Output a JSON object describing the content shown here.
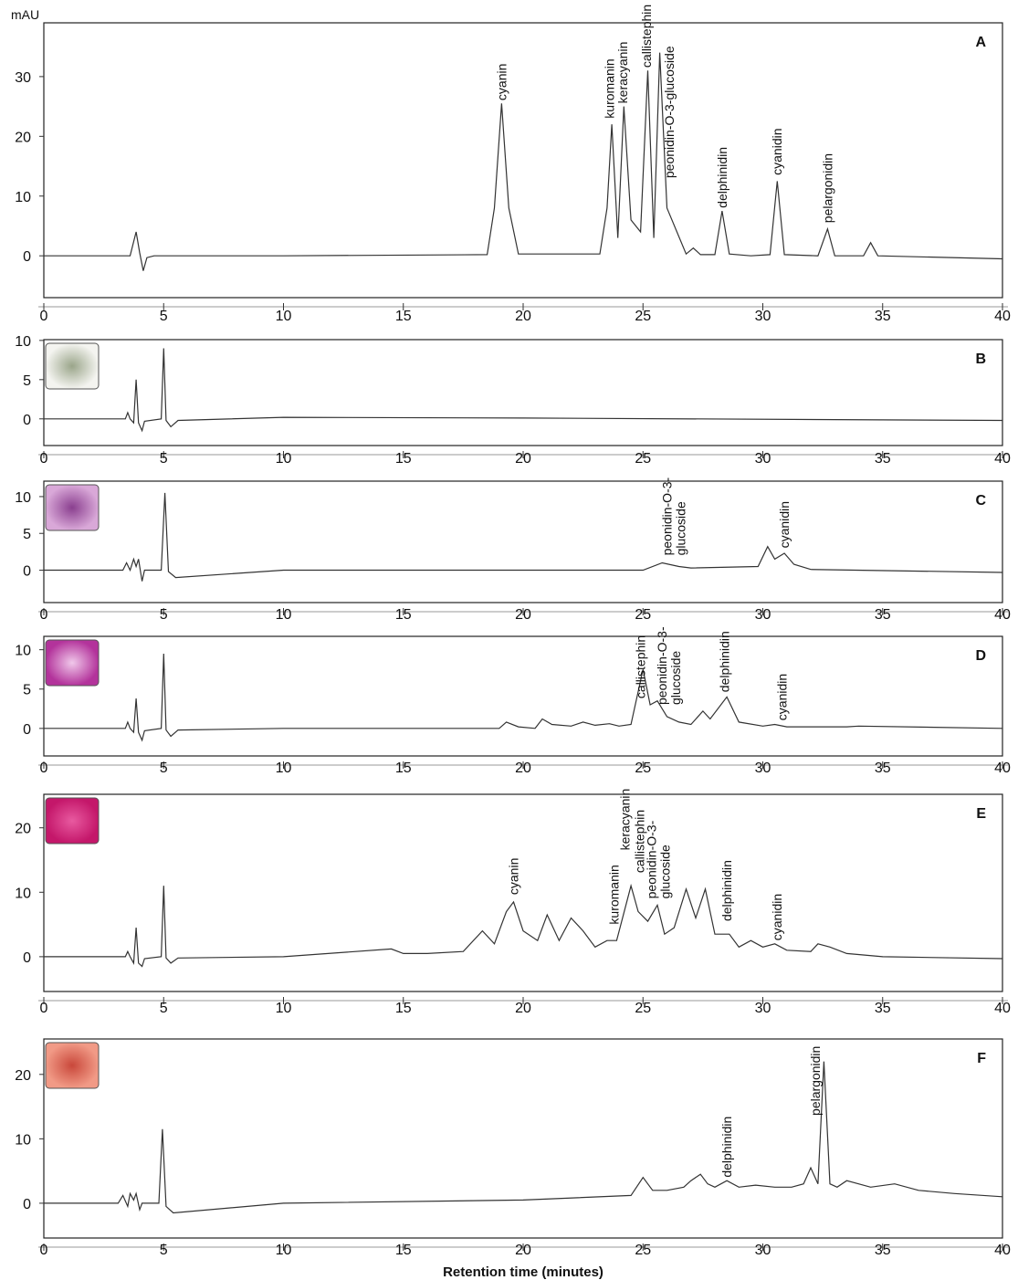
{
  "chart_data": [
    {
      "type": "line",
      "title": "A",
      "y_label": "mAU",
      "color": "#333333",
      "x": [
        0,
        3.6,
        3.85,
        4.0,
        4.15,
        4.3,
        4.6,
        10,
        18.5,
        18.8,
        19.1,
        19.4,
        19.8,
        23.2,
        23.5,
        23.7,
        23.95,
        24.2,
        24.5,
        24.9,
        25.2,
        25.45,
        25.7,
        26.0,
        26.8,
        27.1,
        27.4,
        28.0,
        28.3,
        28.6,
        29.5,
        30.3,
        30.6,
        30.9,
        32.3,
        32.7,
        33.0,
        34.2,
        34.5,
        34.8,
        40
      ],
      "values": [
        0,
        0,
        4,
        0.5,
        -2.5,
        -0.3,
        0,
        0,
        0.2,
        8,
        25.5,
        8,
        0.3,
        0.3,
        8,
        22,
        3,
        25,
        6,
        4,
        31,
        3,
        34,
        8,
        0.3,
        1.3,
        0.2,
        0.2,
        7.5,
        0.3,
        0,
        0.2,
        12.5,
        0.2,
        0,
        4.5,
        0,
        0,
        2.2,
        0,
        -0.5
      ],
      "xlim": [
        0,
        40
      ],
      "ylim": [
        -7,
        39
      ],
      "xticks": [
        0,
        5,
        10,
        15,
        20,
        25,
        30,
        35,
        40
      ],
      "yticks": [
        0,
        10,
        20,
        30
      ],
      "annotations": [
        {
          "text": "cyanin",
          "x": 19.1,
          "y": 26
        },
        {
          "text": "kuromanin",
          "x": 23.6,
          "y": 23
        },
        {
          "text": "keracyanin",
          "x": 24.15,
          "y": 25.5
        },
        {
          "text": "callistephin",
          "x": 25.15,
          "y": 31.5
        },
        {
          "text": "peonidin-O-3-glucoside",
          "x": 26.1,
          "y": 13
        },
        {
          "text": "delphinidin",
          "x": 28.3,
          "y": 8
        },
        {
          "text": "cyanidin",
          "x": 30.6,
          "y": 13.5
        },
        {
          "text": "pelargonidin",
          "x": 32.7,
          "y": 5.5
        }
      ]
    },
    {
      "type": "line",
      "title": "B",
      "color": "#333333",
      "x": [
        0,
        3.4,
        3.5,
        3.6,
        3.75,
        3.85,
        3.95,
        4.1,
        4.2,
        4.9,
        5.0,
        5.1,
        5.3,
        5.6,
        10,
        20,
        40
      ],
      "values": [
        0,
        0,
        0.8,
        0,
        -0.5,
        5,
        -0.5,
        -1.5,
        -0.3,
        0,
        9,
        -0.2,
        -1,
        -0.2,
        0.2,
        0.1,
        -0.2
      ],
      "xlim": [
        0,
        40
      ],
      "ylim": [
        -3.4,
        10.1
      ],
      "xticks": [
        0,
        5,
        10,
        15,
        20,
        25,
        30,
        35,
        40
      ],
      "yticks": [
        0,
        5,
        10
      ],
      "annotations": []
    },
    {
      "type": "line",
      "title": "C",
      "color": "#333333",
      "x": [
        0,
        3.3,
        3.45,
        3.6,
        3.75,
        3.85,
        3.95,
        4.1,
        4.2,
        4.9,
        5.05,
        5.2,
        5.5,
        10,
        25,
        25.8,
        26.5,
        27,
        29.8,
        30.2,
        30.5,
        30.9,
        31.3,
        32,
        40
      ],
      "values": [
        0,
        0,
        1,
        0,
        1.5,
        0.5,
        1.5,
        -1.5,
        0,
        0,
        10.5,
        -0.2,
        -1,
        0,
        0,
        1,
        0.5,
        0.3,
        0.5,
        3.2,
        1.5,
        2.3,
        0.8,
        0.1,
        -0.3
      ],
      "xlim": [
        0,
        40
      ],
      "ylim": [
        -4.4,
        12.1
      ],
      "xticks": [
        0,
        5,
        10,
        15,
        20,
        25,
        30,
        35,
        40
      ],
      "yticks": [
        0,
        5,
        10
      ],
      "annotations": [
        {
          "text": [
            "peonidin-O-3-",
            "glucoside"
          ],
          "x": 26.0,
          "y": 2
        },
        {
          "text": "cyanidin",
          "x": 30.9,
          "y": 3
        }
      ]
    },
    {
      "type": "line",
      "title": "D",
      "color": "#333333",
      "x": [
        0,
        3.4,
        3.5,
        3.6,
        3.75,
        3.85,
        3.95,
        4.1,
        4.2,
        4.9,
        5.0,
        5.1,
        5.3,
        5.6,
        10,
        19,
        19.3,
        19.8,
        20.5,
        20.8,
        21.2,
        22,
        22.5,
        23,
        23.6,
        24,
        24.5,
        25.0,
        25.3,
        25.6,
        26,
        26.5,
        27,
        27.5,
        27.8,
        28.5,
        29,
        30,
        30.5,
        31,
        33.5,
        34,
        40
      ],
      "values": [
        0,
        0,
        0.8,
        0,
        -0.5,
        3.8,
        -0.5,
        -1.5,
        -0.3,
        0,
        9.5,
        -0.2,
        -1,
        -0.2,
        0,
        0,
        0.8,
        0.2,
        0,
        1.2,
        0.5,
        0.3,
        0.8,
        0.4,
        0.6,
        0.3,
        0.5,
        7.5,
        3,
        3.5,
        1.5,
        0.8,
        0.5,
        2.2,
        1.2,
        4,
        0.8,
        0.3,
        0.5,
        0.2,
        0.2,
        0.3,
        0
      ],
      "xlim": [
        0,
        40
      ],
      "ylim": [
        -3.5,
        11.7
      ],
      "xticks": [
        0,
        5,
        10,
        15,
        20,
        25,
        30,
        35,
        40
      ],
      "yticks": [
        0,
        5,
        10
      ],
      "annotations": [
        {
          "text": "callistephin",
          "x": 24.9,
          "y": 3.8
        },
        {
          "text": [
            "peonidin-O-3-",
            "glucoside"
          ],
          "x": 25.8,
          "y": 3
        },
        {
          "text": "delphinidin",
          "x": 28.4,
          "y": 4.6
        },
        {
          "text": "cyanidin",
          "x": 30.8,
          "y": 1
        }
      ]
    },
    {
      "type": "line",
      "title": "E",
      "color": "#333333",
      "x": [
        0,
        3.4,
        3.5,
        3.6,
        3.75,
        3.85,
        3.95,
        4.1,
        4.2,
        4.9,
        5.0,
        5.1,
        5.3,
        5.6,
        10,
        14.5,
        15,
        16,
        17.5,
        18.3,
        18.8,
        19.3,
        19.6,
        20,
        20.6,
        21,
        21.5,
        22,
        22.5,
        23,
        23.5,
        23.9,
        24.5,
        24.8,
        25.2,
        25.6,
        25.9,
        26.3,
        26.8,
        27.2,
        27.6,
        28,
        28.6,
        29,
        29.5,
        30,
        30.5,
        31,
        32,
        32.3,
        32.8,
        33.5,
        35,
        40
      ],
      "values": [
        0,
        0,
        0.8,
        0,
        -1,
        4.5,
        -1,
        -1.5,
        -0.3,
        0,
        11,
        -0.2,
        -1,
        -0.2,
        0,
        1.2,
        0.5,
        0.5,
        0.8,
        4,
        2,
        7,
        8.5,
        4,
        2.5,
        6.5,
        2.5,
        6,
        4,
        1.5,
        2.5,
        2.5,
        11,
        7,
        5.5,
        8,
        3.5,
        4.5,
        10.5,
        6,
        10.5,
        3.5,
        3.5,
        1.5,
        2.5,
        1.5,
        2,
        1,
        0.8,
        2,
        1.5,
        0.5,
        0,
        -0.3
      ],
      "xlim": [
        0,
        40
      ],
      "ylim": [
        -5.4,
        25.2
      ],
      "xticks": [
        0,
        5,
        10,
        15,
        20,
        25,
        30,
        35,
        40
      ],
      "yticks": [
        0,
        10,
        20
      ],
      "annotations": [
        {
          "text": "cyanin",
          "x": 19.6,
          "y": 9.6
        },
        {
          "text": "kuromanin",
          "x": 23.8,
          "y": 5
        },
        {
          "text": "keracyanin",
          "x": 24.25,
          "y": 16.5
        },
        {
          "text": "callistephin",
          "x": 24.85,
          "y": 13
        },
        {
          "text": [
            "peonidin-O-3-",
            "glucoside"
          ],
          "x": 25.35,
          "y": 9
        },
        {
          "text": "delphinidin",
          "x": 28.5,
          "y": 5.5
        },
        {
          "text": "cyanidin",
          "x": 30.6,
          "y": 2.5
        }
      ]
    },
    {
      "type": "line",
      "title": "F",
      "x_label": "Retention time (minutes)",
      "color": "#333333",
      "x": [
        0,
        3.1,
        3.3,
        3.5,
        3.6,
        3.75,
        3.85,
        4.0,
        4.1,
        4.8,
        4.95,
        5.1,
        5.4,
        10,
        20,
        24.5,
        25,
        25.4,
        26,
        26.7,
        27.0,
        27.4,
        27.7,
        28,
        28.5,
        29,
        29.7,
        30.5,
        31.2,
        31.7,
        32.0,
        32.3,
        32.55,
        32.8,
        33.1,
        33.5,
        34.5,
        35.5,
        36.5,
        38,
        40
      ],
      "values": [
        0,
        0,
        1.2,
        -0.5,
        1.5,
        0.5,
        1.5,
        -1,
        0,
        0,
        11.5,
        -0.5,
        -1.5,
        0,
        0.5,
        1.2,
        4,
        2,
        2,
        2.5,
        3.5,
        4.5,
        3,
        2.5,
        3.5,
        2.5,
        2.8,
        2.5,
        2.5,
        3,
        5.5,
        3,
        22,
        3,
        2.5,
        3.5,
        2.5,
        3,
        2,
        1.5,
        1
      ],
      "xlim": [
        0,
        40
      ],
      "ylim": [
        -5.4,
        25.5
      ],
      "xticks": [
        0,
        5,
        10,
        15,
        20,
        25,
        30,
        35,
        40
      ],
      "yticks": [
        0,
        10,
        20
      ],
      "annotations": [
        {
          "text": "delphinidin",
          "x": 28.5,
          "y": 4
        },
        {
          "text": "pelargonidin",
          "x": 32.2,
          "y": 13.6
        }
      ]
    }
  ]
}
